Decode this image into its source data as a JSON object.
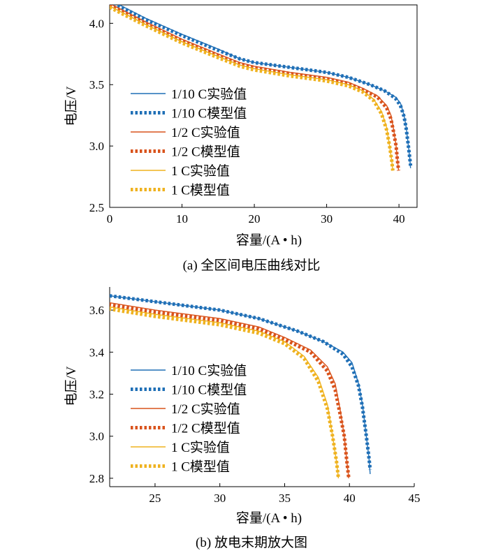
{
  "colors": {
    "c10": "#1f6fb6",
    "c2": "#d9531c",
    "c1": "#efb21f"
  },
  "captions": {
    "a": "(a)  全区间电压曲线对比",
    "b": "(b)  放电末期放大图"
  },
  "chart_data": [
    {
      "type": "line",
      "title": "",
      "xlabel": "容量/(A • h)",
      "ylabel": "电压/V",
      "xlim": [
        0,
        42.5
      ],
      "ylim": [
        2.5,
        4.15
      ],
      "xticks": [
        0,
        10,
        20,
        30,
        40
      ],
      "yticks": [
        2.5,
        3.0,
        3.5,
        4.0
      ],
      "xtick_labels": [
        "0",
        "10",
        "20",
        "30",
        "40"
      ],
      "ytick_labels": [
        "2.5",
        "3.0",
        "3.5",
        "4.0"
      ],
      "legend": "left-middle",
      "series": [
        {
          "name": "1/10 C实验值",
          "color_key": "c10",
          "style": "solid",
          "x": [
            0,
            2,
            5,
            10,
            15,
            18,
            20,
            25,
            30,
            33,
            36,
            38,
            39.5,
            40.2,
            40.7,
            41.0,
            41.3,
            41.5,
            41.6
          ],
          "y": [
            4.19,
            4.13,
            4.04,
            3.91,
            3.79,
            3.71,
            3.68,
            3.64,
            3.6,
            3.56,
            3.5,
            3.45,
            3.4,
            3.35,
            3.25,
            3.15,
            3.0,
            2.9,
            2.82
          ]
        },
        {
          "name": "1/10 C模型值",
          "color_key": "c10",
          "style": "dotted",
          "x": [
            0,
            2,
            5,
            10,
            15,
            18,
            20,
            25,
            30,
            33,
            36,
            38,
            39.5,
            40.2,
            40.7,
            41.0,
            41.3,
            41.5,
            41.6
          ],
          "y": [
            4.18,
            4.12,
            4.03,
            3.9,
            3.78,
            3.71,
            3.68,
            3.64,
            3.6,
            3.56,
            3.5,
            3.45,
            3.39,
            3.33,
            3.24,
            3.14,
            3.0,
            2.9,
            2.84
          ]
        },
        {
          "name": "1/2 C实验值",
          "color_key": "c2",
          "style": "solid",
          "x": [
            0,
            2,
            5,
            10,
            15,
            18,
            20,
            25,
            30,
            33,
            35,
            37,
            38.3,
            38.9,
            39.3,
            39.6,
            39.8,
            39.95
          ],
          "y": [
            4.16,
            4.1,
            4.01,
            3.87,
            3.75,
            3.68,
            3.65,
            3.6,
            3.56,
            3.52,
            3.47,
            3.41,
            3.33,
            3.25,
            3.12,
            3.0,
            2.88,
            2.8
          ]
        },
        {
          "name": "1/2 C模型值",
          "color_key": "c2",
          "style": "dotted",
          "x": [
            0,
            2,
            5,
            10,
            15,
            18,
            20,
            25,
            30,
            33,
            35,
            37,
            38.3,
            38.9,
            39.3,
            39.6,
            39.8,
            39.95
          ],
          "y": [
            4.15,
            4.09,
            4.0,
            3.86,
            3.74,
            3.67,
            3.64,
            3.59,
            3.55,
            3.51,
            3.46,
            3.4,
            3.31,
            3.22,
            3.1,
            3.0,
            2.88,
            2.8
          ]
        },
        {
          "name": "1 C实验值",
          "color_key": "c1",
          "style": "solid",
          "x": [
            0,
            2,
            5,
            10,
            15,
            18,
            20,
            25,
            30,
            33,
            35,
            36.5,
            37.6,
            38.3,
            38.7,
            39.0,
            39.15
          ],
          "y": [
            4.14,
            4.08,
            3.99,
            3.85,
            3.73,
            3.66,
            3.63,
            3.58,
            3.54,
            3.5,
            3.45,
            3.38,
            3.28,
            3.15,
            3.0,
            2.88,
            2.8
          ]
        },
        {
          "name": "1 C模型值",
          "color_key": "c1",
          "style": "dotted",
          "x": [
            0,
            2,
            5,
            10,
            15,
            18,
            20,
            25,
            30,
            33,
            35,
            36.5,
            37.6,
            38.3,
            38.7,
            39.0,
            39.15
          ],
          "y": [
            4.13,
            4.07,
            3.98,
            3.84,
            3.72,
            3.65,
            3.62,
            3.57,
            3.53,
            3.49,
            3.44,
            3.37,
            3.26,
            3.13,
            3.0,
            2.88,
            2.8
          ]
        }
      ]
    },
    {
      "type": "line",
      "title": "",
      "xlabel": "容量/(A • h)",
      "ylabel": "电压/V",
      "xlim": [
        21.5,
        45
      ],
      "ylim": [
        2.76,
        3.71
      ],
      "xticks": [
        25,
        30,
        35,
        40,
        45
      ],
      "yticks": [
        2.8,
        3.0,
        3.2,
        3.4,
        3.6
      ],
      "xtick_labels": [
        "25",
        "30",
        "35",
        "40",
        "45"
      ],
      "ytick_labels": [
        "2.8",
        "3.0",
        "3.2",
        "3.4",
        "3.6"
      ],
      "legend": "left-middle",
      "series_ref": "same as panel (a)"
    }
  ]
}
